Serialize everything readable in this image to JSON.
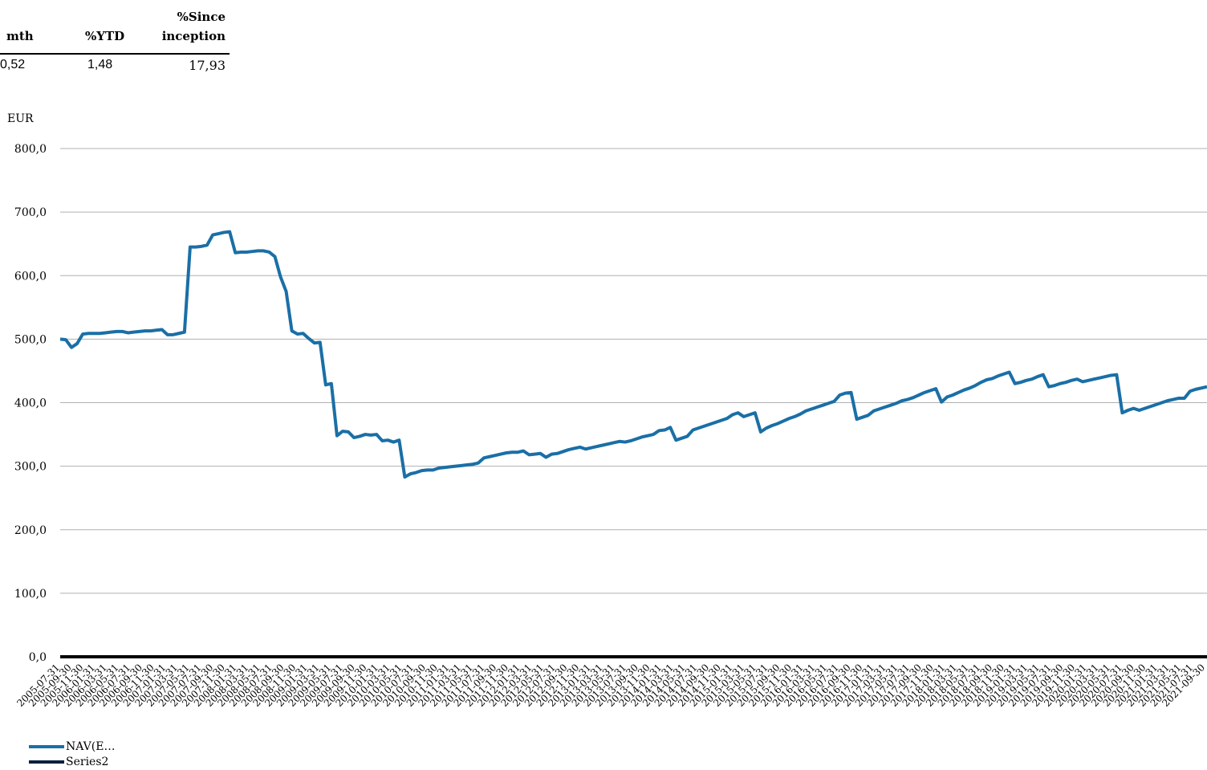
{
  "table": {
    "headers": {
      "mth": "mth",
      "ytd": "%YTD",
      "since_line1": "%Since",
      "since_line2": "inception"
    },
    "values": {
      "mth": "0,52",
      "ytd": "1,48",
      "since": "17,93"
    }
  },
  "colors": {
    "nav": "#1a6fa6",
    "series2": "#0b1f3f",
    "grid": "#b0b0b0"
  },
  "chart_data": {
    "type": "line",
    "ylabel": "EUR",
    "ylim": [
      0,
      800
    ],
    "yticks": [
      "0,0",
      "100,0",
      "200,0",
      "300,0",
      "400,0",
      "500,0",
      "600,0",
      "700,0",
      "800,0"
    ],
    "grid": true,
    "legend_position": "bottom-left",
    "x_labels": [
      "2005-07-31",
      "2005-09-30",
      "2005-11-30",
      "2006-01-31",
      "2006-03-31",
      "2006-05-31",
      "2006-07-31",
      "2006-09-30",
      "2006-11-30",
      "2007-01-31",
      "2007-03-31",
      "2007-05-31",
      "2007-07-31",
      "2007-09-30",
      "2007-11-30",
      "2008-01-31",
      "2008-03-31",
      "2008-05-31",
      "2008-07-31",
      "2008-09-30",
      "2008-11-30",
      "2009-01-31",
      "2009-03-31",
      "2009-05-31",
      "2009-07-31",
      "2009-09-30",
      "2009-11-30",
      "2010-01-31",
      "2010-03-31",
      "2010-05-31",
      "2010-07-31",
      "2010-09-30",
      "2010-11-30",
      "2011-01-31",
      "2011-03-31",
      "2011-05-31",
      "2011-07-31",
      "2011-09-30",
      "2011-11-30",
      "2012-01-31",
      "2012-03-31",
      "2012-05-31",
      "2012-07-31",
      "2012-09-30",
      "2012-11-30",
      "2013-01-31",
      "2013-03-31",
      "2013-05-31",
      "2013-07-31",
      "2013-09-30",
      "2013-11-30",
      "2014-01-31",
      "2014-03-31",
      "2014-05-31",
      "2014-07-31",
      "2014-09-30",
      "2014-11-30",
      "2015-01-31",
      "2015-03-31",
      "2015-05-31",
      "2015-07-31",
      "2015-09-30",
      "2015-11-30",
      "2016-01-31",
      "2016-03-31",
      "2016-05-31",
      "2016-07-31",
      "2016-09-30",
      "2016-11-30",
      "2017-01-31",
      "2017-03-31",
      "2017-05-31",
      "2017-07-31",
      "2017-09-30",
      "2017-11-30",
      "2018-01-31",
      "2018-03-31",
      "2018-05-31",
      "2018-07-31",
      "2018-09-30",
      "2018-11-30",
      "2019-01-31",
      "2019-03-31",
      "2019-05-31",
      "2019-07-31",
      "2019-09-30",
      "2019-11-30",
      "2020-01-31",
      "2020-03-31",
      "2020-05-31",
      "2020-07-31",
      "2020-09-30",
      "2020-11-30",
      "2021-01-31",
      "2021-03-31",
      "2021-05-31",
      "2021-07-31",
      "2021-09-30"
    ],
    "series": [
      {
        "name": "NAV(E…",
        "values": [
          500,
          499,
          487,
          493,
          508,
          509,
          509,
          509,
          510,
          511,
          512,
          512,
          510,
          511,
          512,
          513,
          513,
          514,
          515,
          507,
          507,
          509,
          511,
          645,
          645,
          646,
          648,
          664,
          666,
          668,
          669,
          636,
          637,
          637,
          638,
          639,
          639,
          637,
          630,
          598,
          575,
          513,
          508,
          509,
          501,
          494,
          495,
          428,
          430,
          348,
          355,
          354,
          345,
          347,
          350,
          349,
          350,
          340,
          341,
          338,
          341,
          283,
          288,
          290,
          293,
          294,
          294,
          297,
          298,
          299,
          300,
          301,
          302,
          303,
          305,
          313,
          315,
          317,
          319,
          321,
          322,
          322,
          324,
          318,
          319,
          320,
          314,
          319,
          320,
          323,
          326,
          328,
          330,
          327,
          329,
          331,
          333,
          335,
          337,
          339,
          338,
          340,
          343,
          346,
          348,
          350,
          356,
          357,
          361,
          341,
          344,
          347,
          357,
          360,
          363,
          366,
          369,
          372,
          375,
          381,
          384,
          378,
          381,
          384,
          354,
          360,
          364,
          367,
          371,
          375,
          378,
          382,
          387,
          390,
          393,
          396,
          399,
          402,
          412,
          415,
          416,
          374,
          377,
          380,
          387,
          390,
          393,
          396,
          399,
          403,
          405,
          408,
          412,
          416,
          419,
          422,
          401,
          409,
          412,
          416,
          420,
          423,
          427,
          432,
          436,
          438,
          442,
          445,
          448,
          430,
          432,
          435,
          437,
          441,
          444,
          425,
          427,
          430,
          432,
          435,
          437,
          433,
          435,
          437,
          439,
          441,
          443,
          444,
          384,
          388,
          391,
          388,
          391,
          394,
          397,
          400,
          403,
          405,
          407,
          407,
          418,
          421,
          423,
          425
        ]
      },
      {
        "name": "Series2",
        "values": [
          0
        ]
      }
    ]
  }
}
